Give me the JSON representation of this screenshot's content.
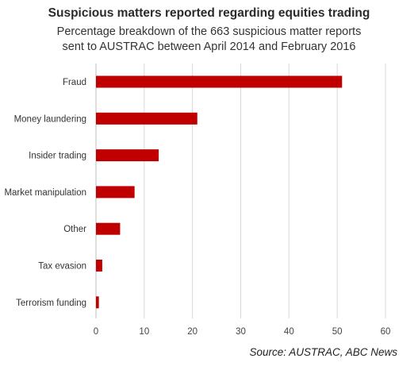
{
  "chart_data": {
    "type": "bar",
    "orientation": "horizontal",
    "title": "Suspicious matters reported regarding equities trading",
    "subtitle_lines": [
      "Percentage breakdown of the 663 suspicious matter reports",
      "sent to AUSTRAC between April 2014 and February 2016"
    ],
    "categories": [
      "Fraud",
      "Money laundering",
      "Insider trading",
      "Market manipulation",
      "Other",
      "Tax evasion",
      "Terrorism funding"
    ],
    "values": [
      51,
      21,
      13,
      8,
      5,
      1.3,
      0.6
    ],
    "xlim": [
      0,
      60
    ],
    "xticks": [
      "0",
      "10",
      "20",
      "30",
      "40",
      "50",
      "60"
    ],
    "grid": true,
    "legend": "none",
    "bar_color": "#c00000",
    "source": "Source: AUSTRAC, ABC News"
  }
}
